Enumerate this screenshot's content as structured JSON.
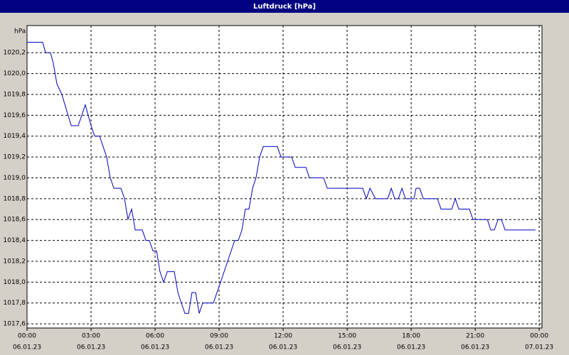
{
  "chart_data": {
    "type": "line",
    "title": "Luftdruck [hPa]",
    "y_unit": "hPa",
    "color": "#0000c0",
    "grid": true,
    "x": [
      0,
      0.73,
      0.87,
      1.1,
      1.23,
      1.4,
      1.63,
      2.07,
      2.4,
      2.73,
      3.0,
      3.17,
      3.4,
      3.73,
      3.9,
      4.07,
      4.4,
      4.57,
      4.73,
      4.9,
      5.07,
      5.4,
      5.57,
      5.73,
      5.9,
      6.07,
      6.23,
      6.4,
      6.57,
      6.9,
      7.07,
      7.23,
      7.4,
      7.57,
      7.73,
      7.9,
      8.07,
      8.23,
      8.73,
      9.07,
      9.4,
      9.73,
      9.9,
      10.07,
      10.23,
      10.4,
      10.57,
      10.73,
      10.9,
      11.07,
      11.73,
      11.9,
      12.4,
      12.57,
      13.07,
      13.23,
      13.9,
      14.07,
      15.73,
      15.9,
      16.07,
      16.33,
      16.9,
      17.07,
      17.23,
      17.4,
      17.57,
      17.73,
      18.13,
      18.23,
      18.4,
      18.57,
      19.23,
      19.4,
      19.9,
      20.07,
      20.23,
      20.73,
      20.9,
      21.57,
      21.73,
      21.9,
      22.07,
      22.23,
      22.4,
      23.83
    ],
    "values": [
      1020.3,
      1020.3,
      1020.2,
      1020.2,
      1020.1,
      1019.9,
      1019.8,
      1019.5,
      1019.5,
      1019.7,
      1019.5,
      1019.4,
      1019.4,
      1019.2,
      1019.0,
      1018.9,
      1018.9,
      1018.8,
      1018.6,
      1018.7,
      1018.5,
      1018.5,
      1018.4,
      1018.4,
      1018.3,
      1018.3,
      1018.1,
      1018.0,
      1018.1,
      1018.1,
      1017.9,
      1017.8,
      1017.7,
      1017.7,
      1017.9,
      1017.9,
      1017.7,
      1017.8,
      1017.8,
      1018.0,
      1018.2,
      1018.4,
      1018.4,
      1018.5,
      1018.7,
      1018.7,
      1018.9,
      1019.0,
      1019.2,
      1019.3,
      1019.3,
      1019.2,
      1019.2,
      1019.1,
      1019.1,
      1019.0,
      1019.0,
      1018.9,
      1018.9,
      1018.8,
      1018.9,
      1018.8,
      1018.8,
      1018.9,
      1018.8,
      1018.8,
      1018.9,
      1018.8,
      1018.8,
      1018.9,
      1018.9,
      1018.8,
      1018.8,
      1018.7,
      1018.7,
      1018.8,
      1018.7,
      1018.7,
      1018.6,
      1018.6,
      1018.5,
      1018.5,
      1018.6,
      1018.6,
      1018.5,
      1018.5
    ],
    "xlim": [
      0,
      24.13
    ],
    "xticks": [
      {
        "value": 0,
        "label": "00:00"
      },
      {
        "value": 3,
        "label": "03:00"
      },
      {
        "value": 6,
        "label": "06:00"
      },
      {
        "value": 9,
        "label": "09:00"
      },
      {
        "value": 12,
        "label": "12:00"
      },
      {
        "value": 15,
        "label": "15:00"
      },
      {
        "value": 18,
        "label": "18:00"
      },
      {
        "value": 21,
        "label": "21:00"
      },
      {
        "value": 24,
        "label": "00:00"
      }
    ],
    "xtick_dates": [
      "06.01.23",
      "06.01.23",
      "06.01.23",
      "06.01.23",
      "06.01.23",
      "06.01.23",
      "06.01.23",
      "06.01.23",
      "07.01.23"
    ],
    "ylim": [
      1017.56,
      1020.46
    ],
    "yticks": [
      {
        "value": 1017.6,
        "label": "1017,6"
      },
      {
        "value": 1017.8,
        "label": "1017,8"
      },
      {
        "value": 1018.0,
        "label": "1018,0"
      },
      {
        "value": 1018.2,
        "label": "1018,2"
      },
      {
        "value": 1018.4,
        "label": "1018,4"
      },
      {
        "value": 1018.6,
        "label": "1018,6"
      },
      {
        "value": 1018.8,
        "label": "1018,8"
      },
      {
        "value": 1019.0,
        "label": "1019,0"
      },
      {
        "value": 1019.2,
        "label": "1019,2"
      },
      {
        "value": 1019.4,
        "label": "1019,4"
      },
      {
        "value": 1019.6,
        "label": "1019,6"
      },
      {
        "value": 1019.8,
        "label": "1019,8"
      },
      {
        "value": 1020.0,
        "label": "1020,0"
      },
      {
        "value": 1020.2,
        "label": "1020,2"
      }
    ]
  }
}
